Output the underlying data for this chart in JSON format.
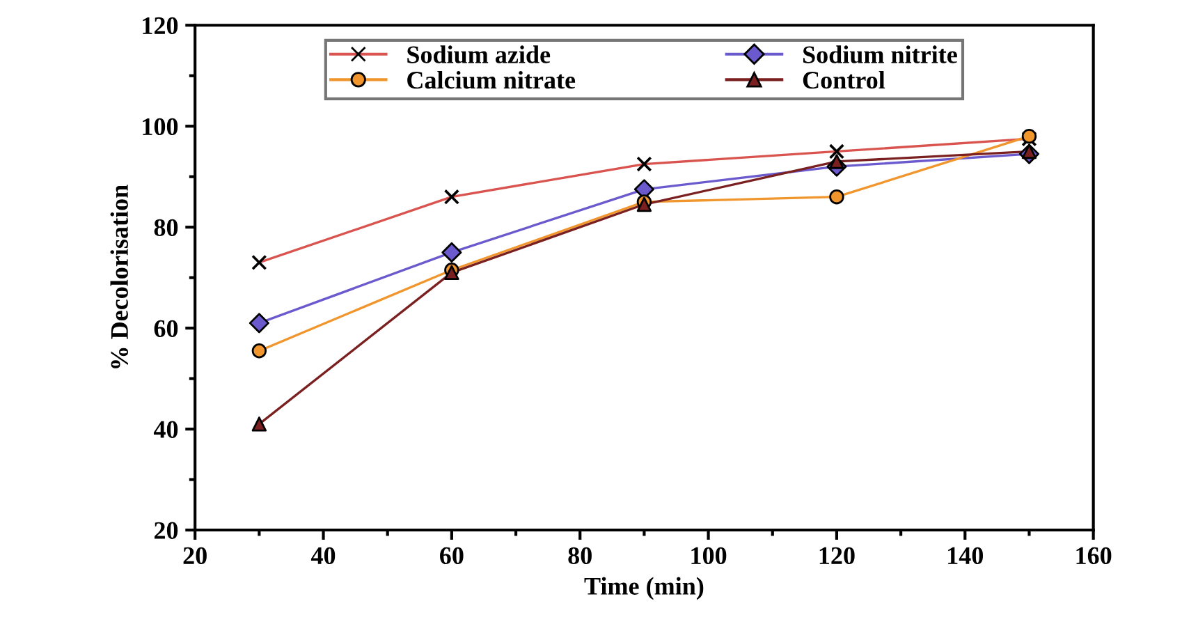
{
  "chart_data": {
    "type": "line",
    "xlabel": "Time (min)",
    "ylabel": "% Decolorisation",
    "x": [
      30,
      60,
      90,
      120,
      150
    ],
    "series": [
      {
        "name": "Sodium azide",
        "color": "#d9534f",
        "marker": "cross",
        "values": [
          73,
          86,
          92.5,
          95,
          97.5
        ]
      },
      {
        "name": "Sodium nitrite",
        "color": "#6a5acd",
        "marker": "diamond",
        "values": [
          61,
          75,
          87.5,
          92,
          94.5
        ]
      },
      {
        "name": "Calcium nitrate",
        "color": "#f0962d",
        "marker": "circle",
        "values": [
          55.5,
          71.5,
          85,
          86,
          98
        ]
      },
      {
        "name": "Control",
        "color": "#7b2020",
        "marker": "triangle",
        "values": [
          41,
          71,
          84.5,
          93,
          95
        ]
      }
    ],
    "xlim": [
      20,
      160
    ],
    "xticks": [
      20,
      40,
      60,
      80,
      100,
      120,
      140,
      160
    ],
    "ylim": [
      20,
      120
    ],
    "yticks": [
      20,
      40,
      60,
      80,
      100,
      120
    ],
    "grid": false,
    "legend": "top",
    "line_style": "solid"
  }
}
